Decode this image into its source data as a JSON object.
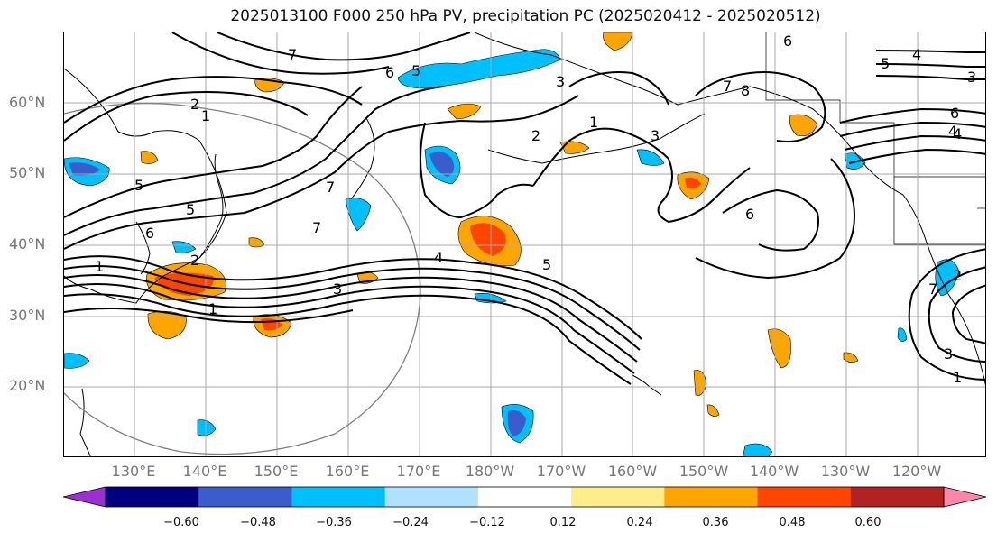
{
  "title": "2025013100 F000 250 hPa PV, precipitation PC (2025020412 - 2025020512)",
  "lat_labels": [
    "60°N",
    "50°N",
    "40°N",
    "30°N",
    "20°N"
  ],
  "lon_labels": [
    "130°E",
    "140°E",
    "150°E",
    "160°E",
    "170°E",
    "180°W",
    "170°W",
    "160°W",
    "150°W",
    "140°W",
    "130°W",
    "120°W"
  ],
  "contour_labels": [
    "7",
    "6",
    "5",
    "3",
    "2",
    "1",
    "7",
    "8",
    "6",
    "4",
    "5",
    "4",
    "7",
    "5",
    "6",
    "1",
    "1",
    "2",
    "3",
    "4",
    "5",
    "6",
    "7",
    "3",
    "1",
    "2",
    "5",
    "4",
    "3",
    "6",
    "7",
    "2",
    "1",
    "3"
  ],
  "colorbar": {
    "colors": [
      "#9b30d0",
      "#000080",
      "#3a5ccd",
      "#00bfff",
      "#b0e2ff",
      "#ffffff",
      "#ffec8b",
      "#ffa500",
      "#ff4500",
      "#b22222",
      "#ff88aa"
    ],
    "tick_labels": [
      "−0.60",
      "−0.48",
      "−0.36",
      "−0.24",
      "−0.12",
      "0.12",
      "0.24",
      "0.36",
      "0.48",
      "0.60"
    ]
  }
}
